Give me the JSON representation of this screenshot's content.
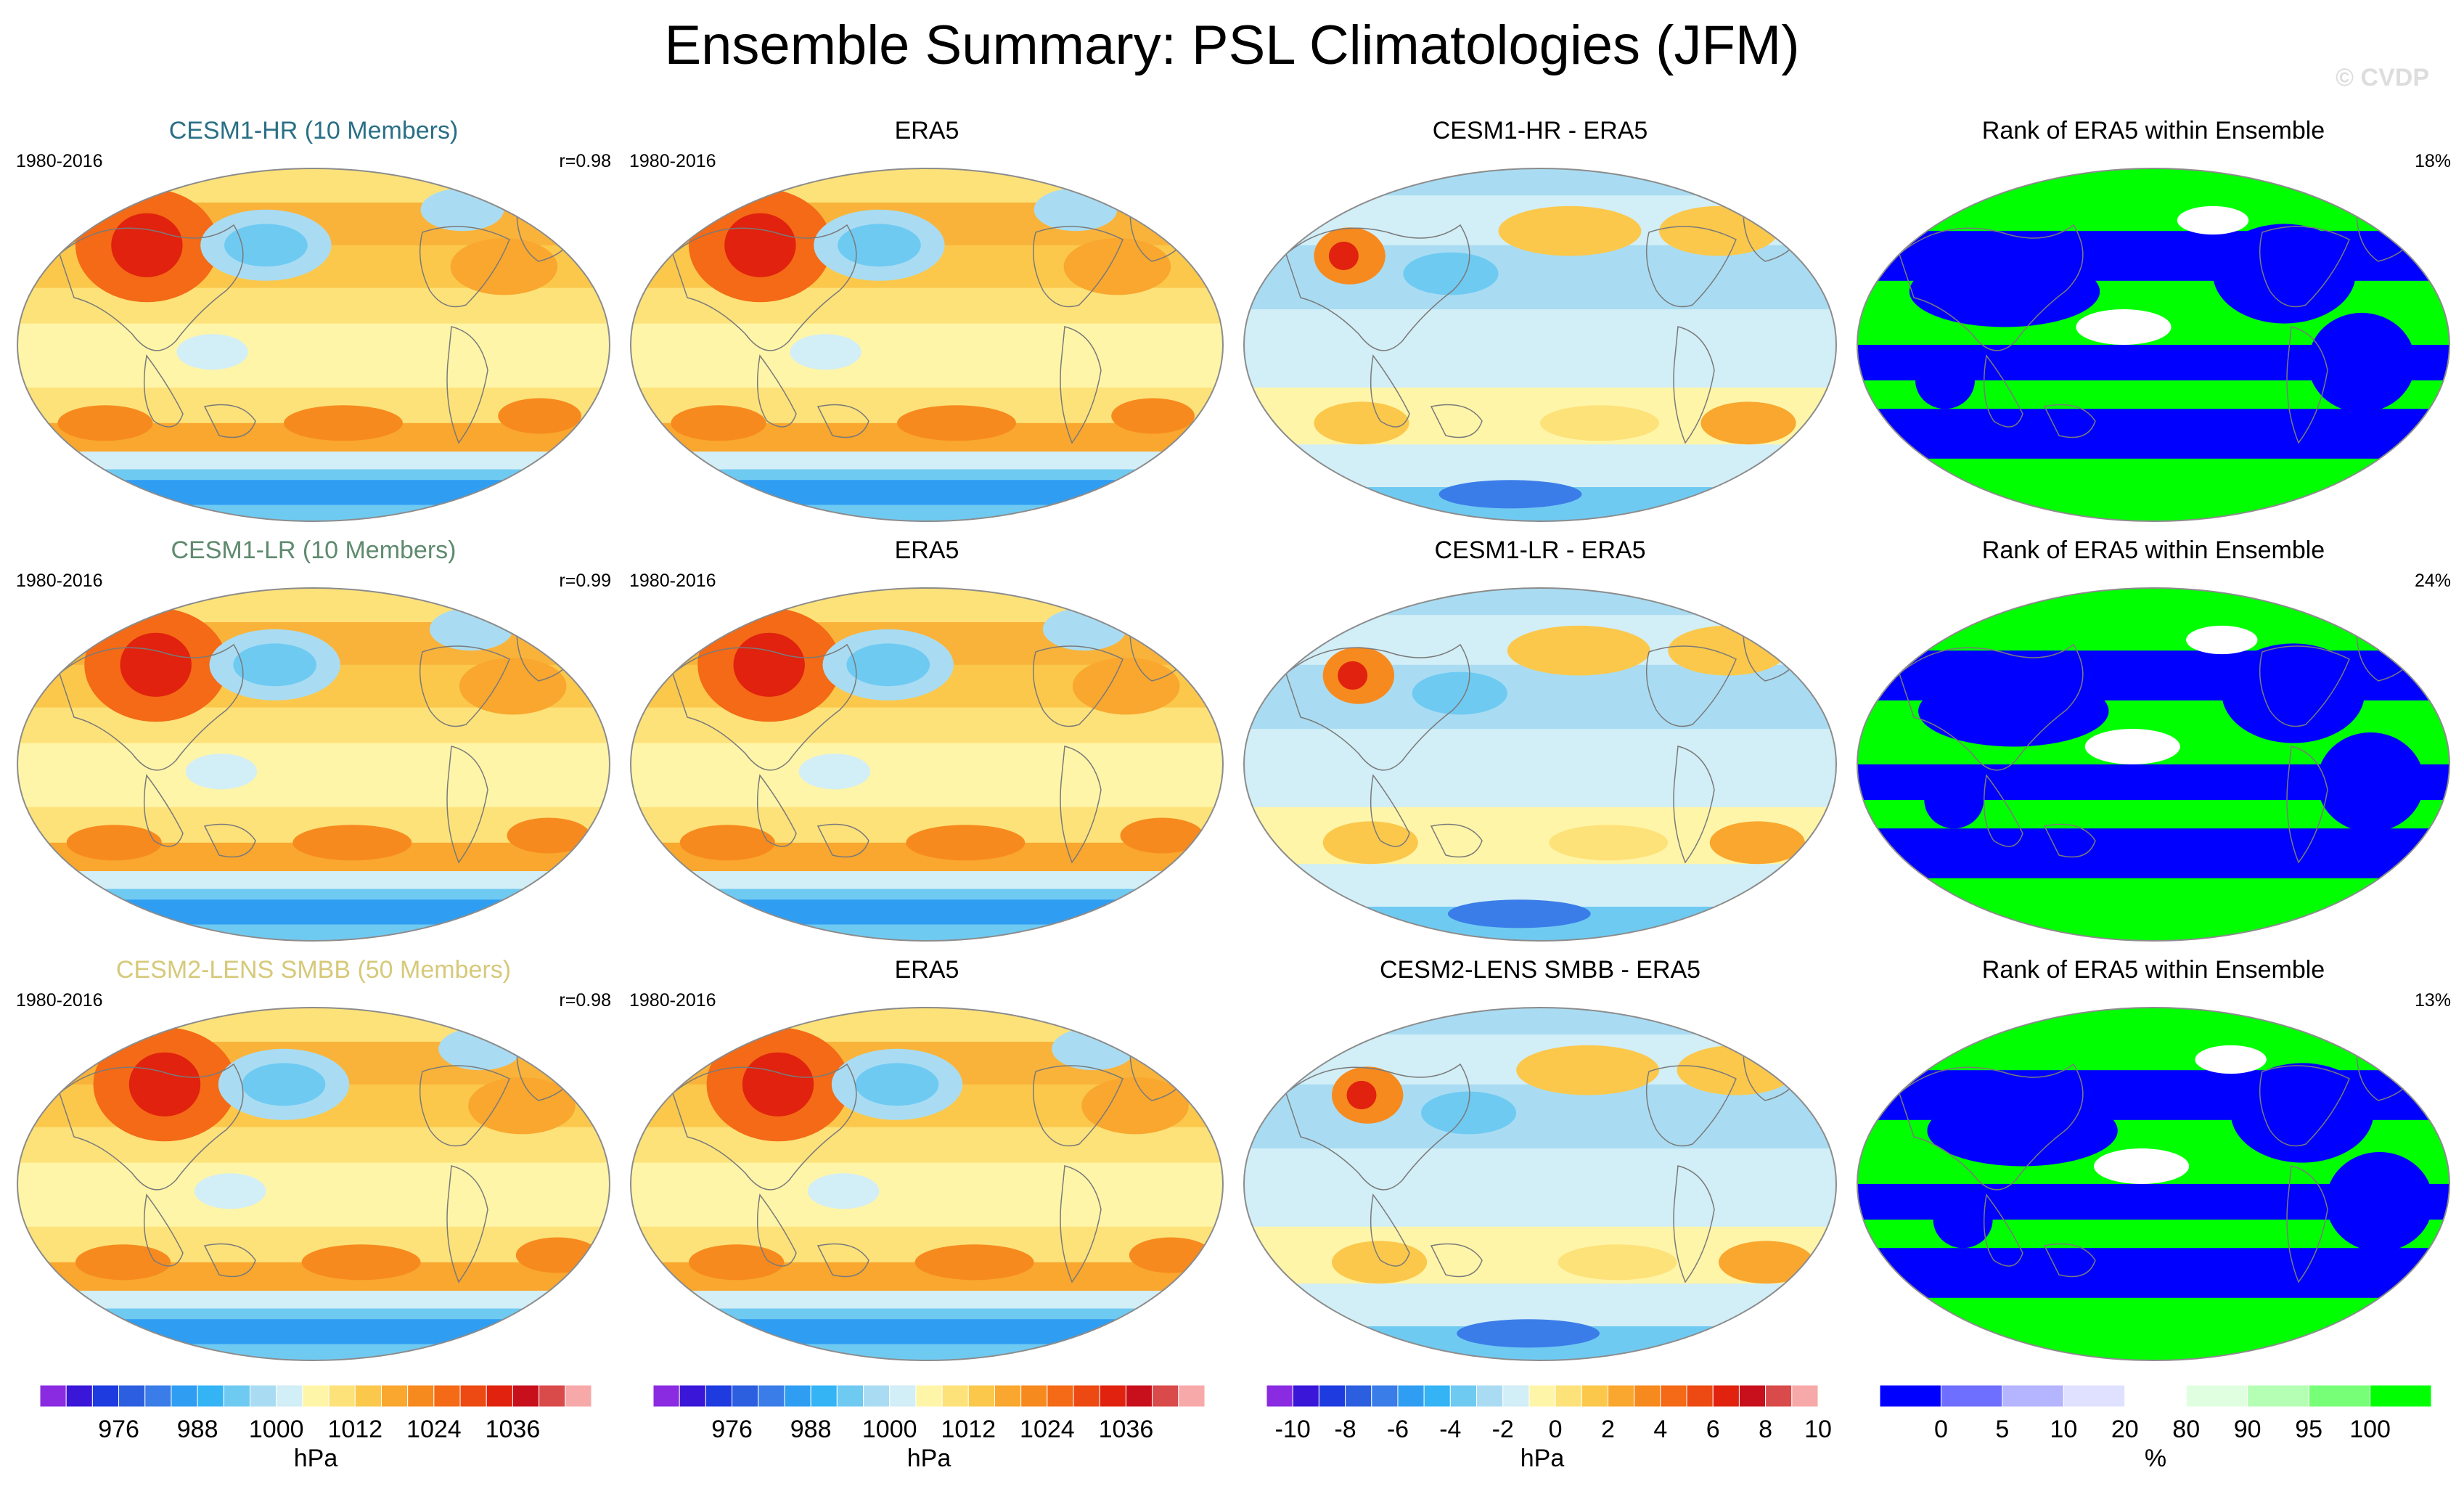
{
  "title": "Ensemble Summary: PSL Climatologies (JFM)",
  "watermark": "© CVDP",
  "rows": [
    {
      "ensemble": {
        "label": "CESM1-HR (10 Members)",
        "color": "#2a6f86",
        "period": "1980-2016",
        "corr": "r=0.98"
      },
      "obs": {
        "label": "ERA5",
        "period": "1980-2016"
      },
      "diff": {
        "label": "CESM1-HR - ERA5"
      },
      "rank": {
        "label": "Rank of ERA5 within Ensemble",
        "pct": "18%"
      }
    },
    {
      "ensemble": {
        "label": "CESM1-LR (10 Members)",
        "color": "#5e8a6e",
        "period": "1980-2016",
        "corr": "r=0.99"
      },
      "obs": {
        "label": "ERA5",
        "period": "1980-2016"
      },
      "diff": {
        "label": "CESM1-LR - ERA5"
      },
      "rank": {
        "label": "Rank of ERA5 within Ensemble",
        "pct": "24%"
      }
    },
    {
      "ensemble": {
        "label": "CESM2-LENS SMBB (50 Members)",
        "color": "#d6c97a",
        "period": "1980-2016",
        "corr": "r=0.98"
      },
      "obs": {
        "label": "ERA5",
        "period": "1980-2016"
      },
      "diff": {
        "label": "CESM2-LENS SMBB - ERA5"
      },
      "rank": {
        "label": "Rank of ERA5 within Ensemble",
        "pct": "13%"
      }
    }
  ],
  "chart_data": [
    {
      "type": "heatmap",
      "description_type": "colorbar",
      "name": "psl-climatology",
      "unit": "hPa",
      "tick_labels": [
        "976",
        "988",
        "1000",
        "1012",
        "1024",
        "1036"
      ],
      "levels": [
        968,
        972,
        976,
        980,
        984,
        988,
        992,
        996,
        1000,
        1004,
        1008,
        1012,
        1016,
        1020,
        1024,
        1028,
        1032,
        1036,
        1040,
        1044
      ],
      "colors": [
        "#8a2be2",
        "#3a16d8",
        "#1e3be0",
        "#2b5fe0",
        "#3b7de8",
        "#2f9ef2",
        "#35b4f5",
        "#6fcaf2",
        "#a9dcf2",
        "#d2eef7",
        "#fff5a8",
        "#fde27a",
        "#fbc84c",
        "#f9a72e",
        "#f78a1e",
        "#f46a16",
        "#ec4a12",
        "#e0220e",
        "#c8101c",
        "#d94a4a",
        "#f7a8a8"
      ]
    },
    {
      "type": "heatmap",
      "description_type": "colorbar",
      "name": "psl-difference",
      "unit": "hPa",
      "tick_labels": [
        "-10",
        "-8",
        "-6",
        "-4",
        "-2",
        "0",
        "2",
        "4",
        "6",
        "8",
        "10"
      ],
      "levels": [
        -10,
        -9,
        -8,
        -7,
        -6,
        -5,
        -4,
        -3,
        -2,
        -1,
        0,
        1,
        2,
        3,
        4,
        5,
        6,
        7,
        8,
        9,
        10
      ],
      "colors": [
        "#8a2be2",
        "#3a16d8",
        "#1e3be0",
        "#2b5fe0",
        "#3b7de8",
        "#2f9ef2",
        "#35b4f5",
        "#6fcaf2",
        "#a9dcf2",
        "#d2eef7",
        "#fff5a8",
        "#fde27a",
        "#fbc84c",
        "#f9a72e",
        "#f78a1e",
        "#f46a16",
        "#ec4a12",
        "#e0220e",
        "#c8101c",
        "#d94a4a",
        "#f7a8a8"
      ]
    },
    {
      "type": "heatmap",
      "description_type": "colorbar",
      "name": "rank",
      "unit": "%",
      "tick_labels": [
        "0",
        "5",
        "10",
        "20",
        "80",
        "90",
        "95",
        "100"
      ],
      "levels": [
        0,
        5,
        10,
        20,
        80,
        90,
        95,
        100
      ],
      "colors": [
        "#0000ff",
        "#6e6eff",
        "#b4b4ff",
        "#e0e0ff",
        "#ffffff",
        "#e0ffe0",
        "#b4ffb4",
        "#78ff78",
        "#00ff00"
      ]
    }
  ]
}
